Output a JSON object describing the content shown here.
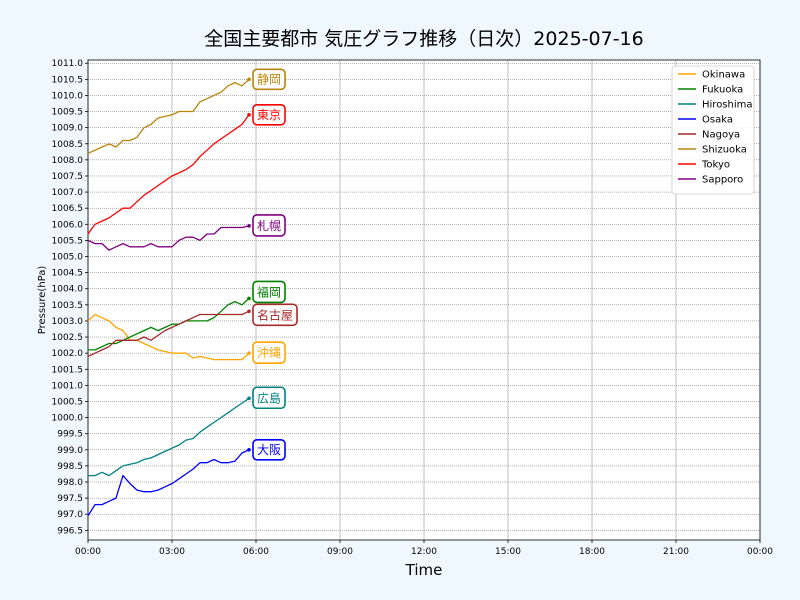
{
  "chart_data": {
    "type": "line",
    "title": "全国主要都市 気圧グラフ推移（日次）2025-07-16",
    "xlabel": "Time",
    "ylabel": "Pressure(hPa)",
    "ylim": [
      996.2,
      1011.1
    ],
    "xlim": [
      "00:00",
      "24:00"
    ],
    "x_tick_labels": [
      "00:00",
      "03:00",
      "06:00",
      "09:00",
      "12:00",
      "15:00",
      "18:00",
      "21:00",
      "00:00"
    ],
    "y_ticks": [
      996.5,
      997.0,
      997.5,
      998.0,
      998.5,
      999.0,
      999.5,
      1000.0,
      1000.5,
      1001.0,
      1001.5,
      1002.0,
      1002.5,
      1003.0,
      1003.5,
      1004.0,
      1004.5,
      1005.0,
      1005.5,
      1006.0,
      1006.5,
      1007.0,
      1007.5,
      1008.0,
      1008.5,
      1009.0,
      1009.5,
      1010.0,
      1010.5,
      1011.0
    ],
    "grid": true,
    "legend_position": "top-right",
    "series": [
      {
        "name": "Okinawa",
        "label": "沖縄",
        "color": "#ffa500",
        "x": [
          "00:00",
          "00:15",
          "00:30",
          "00:45",
          "01:00",
          "01:15",
          "01:30",
          "01:45",
          "02:00",
          "02:15",
          "02:30",
          "02:45",
          "03:00",
          "03:15",
          "03:30",
          "03:45",
          "04:00",
          "04:15",
          "04:30",
          "04:45",
          "05:00",
          "05:15",
          "05:30",
          "05:45"
        ],
        "values": [
          1003.0,
          1003.2,
          1003.1,
          1003.0,
          1002.8,
          1002.7,
          1002.4,
          1002.4,
          1002.3,
          1002.2,
          1002.1,
          1002.05,
          1002.0,
          1002.0,
          1002.0,
          1001.85,
          1001.9,
          1001.85,
          1001.8,
          1001.8,
          1001.8,
          1001.8,
          1001.8,
          1002.0
        ]
      },
      {
        "name": "Fukuoka",
        "label": "福岡",
        "color": "#008000",
        "x": [
          "00:00",
          "00:15",
          "00:30",
          "00:45",
          "01:00",
          "01:15",
          "01:30",
          "01:45",
          "02:00",
          "02:15",
          "02:30",
          "02:45",
          "03:00",
          "03:15",
          "03:30",
          "03:45",
          "04:00",
          "04:15",
          "04:30",
          "04:45",
          "05:00",
          "05:15",
          "05:30",
          "05:45"
        ],
        "values": [
          1002.1,
          1002.1,
          1002.2,
          1002.3,
          1002.3,
          1002.4,
          1002.5,
          1002.6,
          1002.7,
          1002.8,
          1002.7,
          1002.8,
          1002.9,
          1002.9,
          1003.0,
          1003.0,
          1003.0,
          1003.0,
          1003.1,
          1003.3,
          1003.5,
          1003.6,
          1003.5,
          1003.7
        ]
      },
      {
        "name": "Hiroshima",
        "label": "広島",
        "color": "#008080",
        "x": [
          "00:00",
          "00:15",
          "00:30",
          "00:45",
          "01:00",
          "01:15",
          "01:30",
          "01:45",
          "02:00",
          "02:15",
          "02:30",
          "02:45",
          "03:00",
          "03:15",
          "03:30",
          "03:45",
          "04:00",
          "04:15",
          "04:30",
          "04:45",
          "05:00",
          "05:15",
          "05:30",
          "05:45"
        ],
        "values": [
          998.2,
          998.2,
          998.3,
          998.2,
          998.35,
          998.5,
          998.55,
          998.6,
          998.7,
          998.75,
          998.85,
          998.95,
          999.05,
          999.15,
          999.3,
          999.35,
          999.55,
          999.7,
          999.85,
          1000.0,
          1000.15,
          1000.3,
          1000.45,
          1000.6
        ]
      },
      {
        "name": "Osaka",
        "label": "大阪",
        "color": "#0000ff",
        "x": [
          "00:00",
          "00:15",
          "00:30",
          "00:45",
          "01:00",
          "01:15",
          "01:30",
          "01:45",
          "02:00",
          "02:15",
          "02:30",
          "02:45",
          "03:00",
          "03:15",
          "03:30",
          "03:45",
          "04:00",
          "04:15",
          "04:30",
          "04:45",
          "05:00",
          "05:15",
          "05:30",
          "05:45"
        ],
        "values": [
          996.95,
          997.3,
          997.3,
          997.4,
          997.5,
          998.2,
          997.95,
          997.75,
          997.7,
          997.7,
          997.75,
          997.85,
          997.95,
          998.1,
          998.25,
          998.4,
          998.6,
          998.6,
          998.7,
          998.6,
          998.6,
          998.65,
          998.9,
          999.0
        ]
      },
      {
        "name": "Nagoya",
        "label": "名古屋",
        "color": "#a52a2a",
        "x": [
          "00:00",
          "00:15",
          "00:30",
          "00:45",
          "01:00",
          "01:15",
          "01:30",
          "01:45",
          "02:00",
          "02:15",
          "02:30",
          "02:45",
          "03:00",
          "03:15",
          "03:30",
          "03:45",
          "04:00",
          "04:15",
          "04:30",
          "04:45",
          "05:00",
          "05:15",
          "05:30",
          "05:45"
        ],
        "values": [
          1001.9,
          1002.0,
          1002.1,
          1002.2,
          1002.4,
          1002.4,
          1002.4,
          1002.4,
          1002.5,
          1002.4,
          1002.55,
          1002.7,
          1002.8,
          1002.9,
          1003.0,
          1003.1,
          1003.2,
          1003.2,
          1003.2,
          1003.2,
          1003.2,
          1003.2,
          1003.2,
          1003.3
        ]
      },
      {
        "name": "Shizuoka",
        "label": "静岡",
        "color": "#b8860b",
        "x": [
          "00:00",
          "00:15",
          "00:30",
          "00:45",
          "01:00",
          "01:15",
          "01:30",
          "01:45",
          "02:00",
          "02:15",
          "02:30",
          "02:45",
          "03:00",
          "03:15",
          "03:30",
          "03:45",
          "04:00",
          "04:15",
          "04:30",
          "04:45",
          "05:00",
          "05:15",
          "05:30",
          "05:45"
        ],
        "values": [
          1008.2,
          1008.3,
          1008.4,
          1008.5,
          1008.4,
          1008.6,
          1008.6,
          1008.7,
          1009.0,
          1009.1,
          1009.3,
          1009.35,
          1009.4,
          1009.5,
          1009.5,
          1009.5,
          1009.8,
          1009.9,
          1010.0,
          1010.1,
          1010.3,
          1010.4,
          1010.3,
          1010.5
        ]
      },
      {
        "name": "Tokyo",
        "label": "東京",
        "color": "#ff0000",
        "x": [
          "00:00",
          "00:15",
          "00:30",
          "00:45",
          "01:00",
          "01:15",
          "01:30",
          "01:45",
          "02:00",
          "02:15",
          "02:30",
          "02:45",
          "03:00",
          "03:15",
          "03:30",
          "03:45",
          "04:00",
          "04:15",
          "04:30",
          "04:45",
          "05:00",
          "05:15",
          "05:30",
          "05:45"
        ],
        "values": [
          1005.7,
          1006.0,
          1006.1,
          1006.2,
          1006.35,
          1006.5,
          1006.5,
          1006.7,
          1006.9,
          1007.05,
          1007.2,
          1007.35,
          1007.5,
          1007.6,
          1007.7,
          1007.85,
          1008.1,
          1008.3,
          1008.5,
          1008.65,
          1008.8,
          1008.95,
          1009.1,
          1009.4
        ]
      },
      {
        "name": "Sapporo",
        "label": "札幌",
        "color": "#800080",
        "x": [
          "00:00",
          "00:15",
          "00:30",
          "00:45",
          "01:00",
          "01:15",
          "01:30",
          "01:45",
          "02:00",
          "02:15",
          "02:30",
          "02:45",
          "03:00",
          "03:15",
          "03:30",
          "03:45",
          "04:00",
          "04:15",
          "04:30",
          "04:45",
          "05:00",
          "05:15",
          "05:30",
          "05:45"
        ],
        "values": [
          1005.5,
          1005.4,
          1005.4,
          1005.2,
          1005.3,
          1005.4,
          1005.3,
          1005.3,
          1005.3,
          1005.4,
          1005.3,
          1005.3,
          1005.3,
          1005.5,
          1005.6,
          1005.6,
          1005.5,
          1005.7,
          1005.7,
          1005.9,
          1005.9,
          1005.9,
          1005.9,
          1005.95
        ]
      }
    ]
  }
}
